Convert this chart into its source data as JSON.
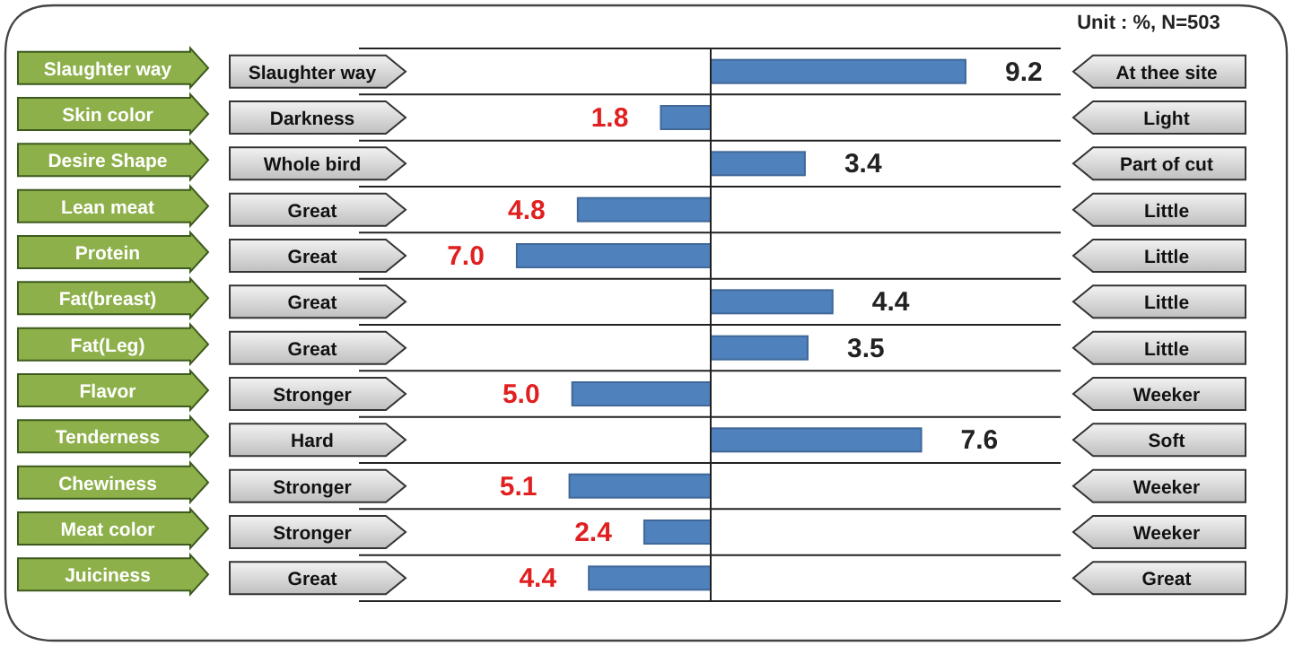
{
  "chart_data": [
    {
      "type": "bar",
      "orientation": "horizontal",
      "categories": [
        "Slaughter way",
        "Skin color",
        "Desire Shape",
        "Lean meat",
        "Protein",
        "Fat(breast)",
        "Fat(Leg)",
        "Flavor",
        "Tenderness",
        "Chewiness",
        "Meat color",
        "Juiciness"
      ],
      "values": [
        null,
        1.8,
        null,
        4.8,
        7.0,
        null,
        null,
        5.0,
        null,
        5.1,
        2.4,
        4.4
      ],
      "value_labels": [
        null,
        "1.8",
        null,
        "4.8",
        "7.0",
        null,
        null,
        "5.0",
        null,
        "5.1",
        "2.4",
        "4.4"
      ],
      "color": "#4f81bd",
      "grid": "y",
      "annotations": [
        "Slaughter way",
        "Darkness",
        "Whole bird",
        "Great",
        "Great",
        "Great",
        "Great",
        "Stronger",
        "Hard",
        "Stronger",
        "Stronger",
        "Great"
      ]
    },
    {
      "type": "bar",
      "orientation": "horizontal",
      "categories": [
        "At thee site",
        "Light",
        "Part of cut",
        "Little",
        "Little",
        "Little",
        "Little",
        "Weeker",
        "Soft",
        "Weeker",
        "Weeker",
        "Great"
      ],
      "values": [
        9.2,
        null,
        3.4,
        null,
        null,
        4.4,
        3.5,
        null,
        7.6,
        null,
        null,
        null
      ],
      "value_labels": [
        "9.2",
        null,
        "3.4",
        null,
        null,
        "4.4",
        "3.5",
        null,
        "7.6",
        null,
        null,
        null
      ],
      "color": "#4f81bd",
      "grid": "y",
      "annotations": [
        "Unit : %, N=503"
      ]
    }
  ]
}
